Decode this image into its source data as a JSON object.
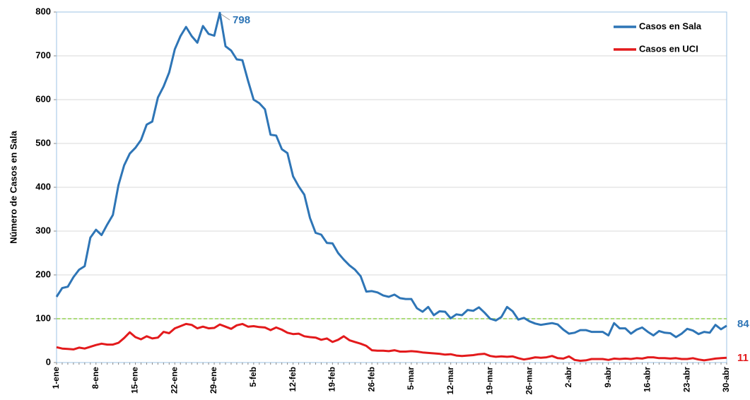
{
  "chart_data": {
    "type": "line",
    "y_label": "Número de Casos en Sala",
    "categories": [
      "1-ene",
      null,
      null,
      null,
      null,
      null,
      null,
      "8-ene",
      null,
      null,
      null,
      null,
      null,
      null,
      "15-ene",
      null,
      null,
      null,
      null,
      null,
      null,
      "22-ene",
      null,
      null,
      null,
      null,
      null,
      null,
      "29-ene",
      null,
      null,
      null,
      null,
      null,
      null,
      "5-feb",
      null,
      null,
      null,
      null,
      null,
      null,
      "12-feb",
      null,
      null,
      null,
      null,
      null,
      null,
      "19-feb",
      null,
      null,
      null,
      null,
      null,
      null,
      "26-feb",
      null,
      null,
      null,
      null,
      null,
      null,
      "5-mar",
      null,
      null,
      null,
      null,
      null,
      null,
      "12-mar",
      null,
      null,
      null,
      null,
      null,
      null,
      "19-mar",
      null,
      null,
      null,
      null,
      null,
      null,
      "26-mar",
      null,
      null,
      null,
      null,
      null,
      null,
      "2-abr",
      null,
      null,
      null,
      null,
      null,
      null,
      "9-abr",
      null,
      null,
      null,
      null,
      null,
      null,
      "16-abr",
      null,
      null,
      null,
      null,
      null,
      null,
      "23-abr",
      null,
      null,
      null,
      null,
      null,
      null,
      "30-abr"
    ],
    "series": [
      {
        "name": "Casos en Sala",
        "color": "#2e75b6",
        "values": [
          150,
          170,
          173,
          195,
          212,
          220,
          285,
          303,
          291,
          315,
          337,
          405,
          450,
          477,
          490,
          508,
          543,
          550,
          605,
          630,
          662,
          715,
          745,
          766,
          745,
          730,
          768,
          750,
          746,
          798,
          722,
          712,
          692,
          690,
          643,
          600,
          592,
          578,
          520,
          518,
          487,
          478,
          425,
          402,
          383,
          330,
          296,
          292,
          273,
          272,
          250,
          235,
          222,
          212,
          197,
          162,
          163,
          160,
          153,
          150,
          155,
          147,
          145,
          145,
          124,
          116,
          127,
          108,
          117,
          116,
          101,
          110,
          108,
          120,
          118,
          126,
          114,
          100,
          96,
          104,
          127,
          117,
          98,
          102,
          94,
          89,
          86,
          88,
          90,
          87,
          75,
          66,
          68,
          74,
          74,
          70,
          70,
          70,
          62,
          90,
          78,
          78,
          66,
          75,
          80,
          70,
          62,
          72,
          68,
          67,
          58,
          66,
          77,
          73,
          65,
          70,
          68,
          86,
          76,
          84
        ]
      },
      {
        "name": "Casos en UCI",
        "color": "#e31a1c",
        "values": [
          35,
          32,
          31,
          30,
          34,
          32,
          36,
          40,
          43,
          41,
          41,
          45,
          56,
          69,
          58,
          53,
          60,
          55,
          57,
          70,
          67,
          78,
          83,
          88,
          86,
          78,
          82,
          78,
          79,
          87,
          82,
          77,
          85,
          88,
          82,
          83,
          81,
          80,
          74,
          80,
          75,
          68,
          65,
          66,
          60,
          58,
          57,
          52,
          55,
          47,
          52,
          60,
          51,
          47,
          43,
          38,
          28,
          27,
          27,
          26,
          28,
          25,
          25,
          26,
          25,
          23,
          22,
          21,
          20,
          18,
          19,
          16,
          15,
          16,
          17,
          19,
          20,
          15,
          13,
          14,
          13,
          14,
          10,
          7,
          9,
          12,
          11,
          12,
          15,
          10,
          9,
          14,
          6,
          4,
          5,
          8,
          8,
          8,
          6,
          9,
          8,
          9,
          8,
          10,
          9,
          12,
          12,
          10,
          10,
          9,
          10,
          8,
          8,
          10,
          7,
          5,
          7,
          9,
          10,
          11
        ]
      }
    ],
    "ylim": [
      0,
      800
    ],
    "yticks": [
      0,
      100,
      200,
      300,
      400,
      500,
      600,
      700,
      800
    ],
    "grid": true,
    "reference_line": {
      "value": 100,
      "color": "#92d050"
    },
    "legend": "upper right"
  }
}
